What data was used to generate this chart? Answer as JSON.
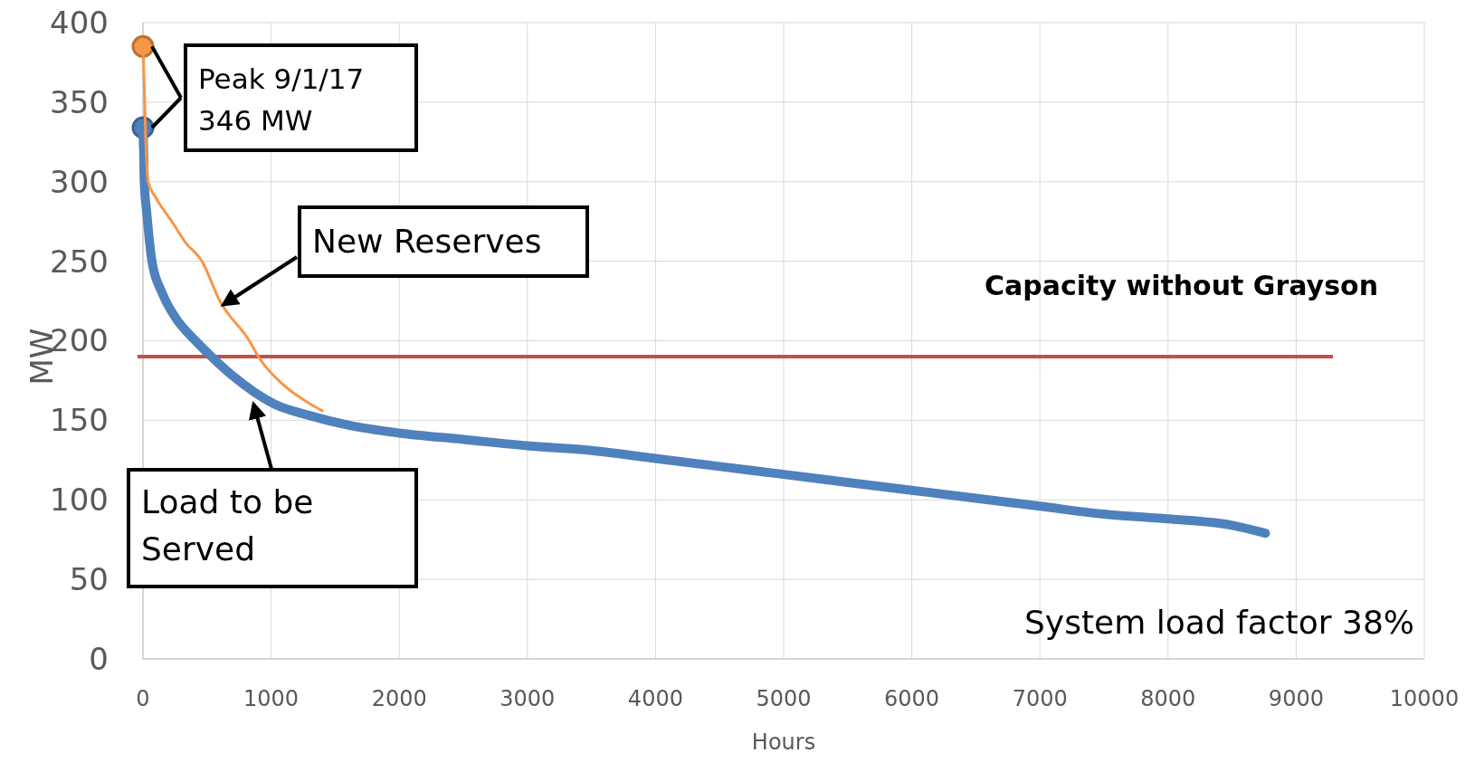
{
  "chart_data": {
    "type": "line",
    "xlabel": "Hours",
    "ylabel": "MW",
    "xlim": [
      0,
      10000
    ],
    "xticks": [
      0,
      1000,
      2000,
      3000,
      4000,
      5000,
      6000,
      7000,
      8000,
      9000,
      10000
    ],
    "ylim": [
      0,
      400
    ],
    "yticks": [
      0,
      50,
      100,
      150,
      200,
      250,
      300,
      350,
      400
    ],
    "grid": true,
    "line_style": "solid",
    "marker": "none",
    "series": [
      {
        "color": "#f79646",
        "x": [
          0,
          10,
          20,
          40,
          100,
          225,
          330,
          460,
          600,
          830,
          900,
          1100,
          1310,
          1400
        ],
        "values": [
          385,
          360,
          330,
          300,
          290,
          275,
          262,
          250,
          225,
          200,
          190,
          172,
          160,
          156
        ]
      },
      {
        "color": "#4f81bd",
        "x": [
          0,
          5,
          10,
          30,
          70,
          150,
          250,
          410,
          535,
          700,
          1030,
          1300,
          1600,
          2000,
          2500,
          3000,
          3500,
          4000,
          4500,
          5000,
          5500,
          6000,
          6500,
          7000,
          7500,
          8000,
          8500,
          8760
        ],
        "values": [
          334,
          320,
          300,
          280,
          250,
          230,
          215,
          200,
          190,
          178,
          160,
          153,
          147,
          142,
          138,
          134,
          131,
          126,
          121,
          116,
          111,
          106,
          101,
          96,
          91,
          88,
          84,
          79
        ]
      },
      {
        "type": "scatter",
        "marker": "circle",
        "color": "#f79646",
        "x": [
          0
        ],
        "values": [
          385
        ]
      },
      {
        "type": "scatter",
        "marker": "circle",
        "color": "#4f81bd",
        "x": [
          0
        ],
        "values": [
          334
        ]
      }
    ],
    "ref_lines": [
      {
        "axis": "y",
        "value": 190,
        "label": "Capacity without Grayson",
        "color": "#c0504d"
      }
    ],
    "annotations": [
      {
        "text": "Peak 9/1/17\n346 MW",
        "x": 0,
        "y": 385
      },
      {
        "text": "New Reserves",
        "x": 600,
        "y": 225
      },
      {
        "text": "Load to be\nServed",
        "x": 850,
        "y": 168
      },
      "System load factor 38%"
    ]
  }
}
